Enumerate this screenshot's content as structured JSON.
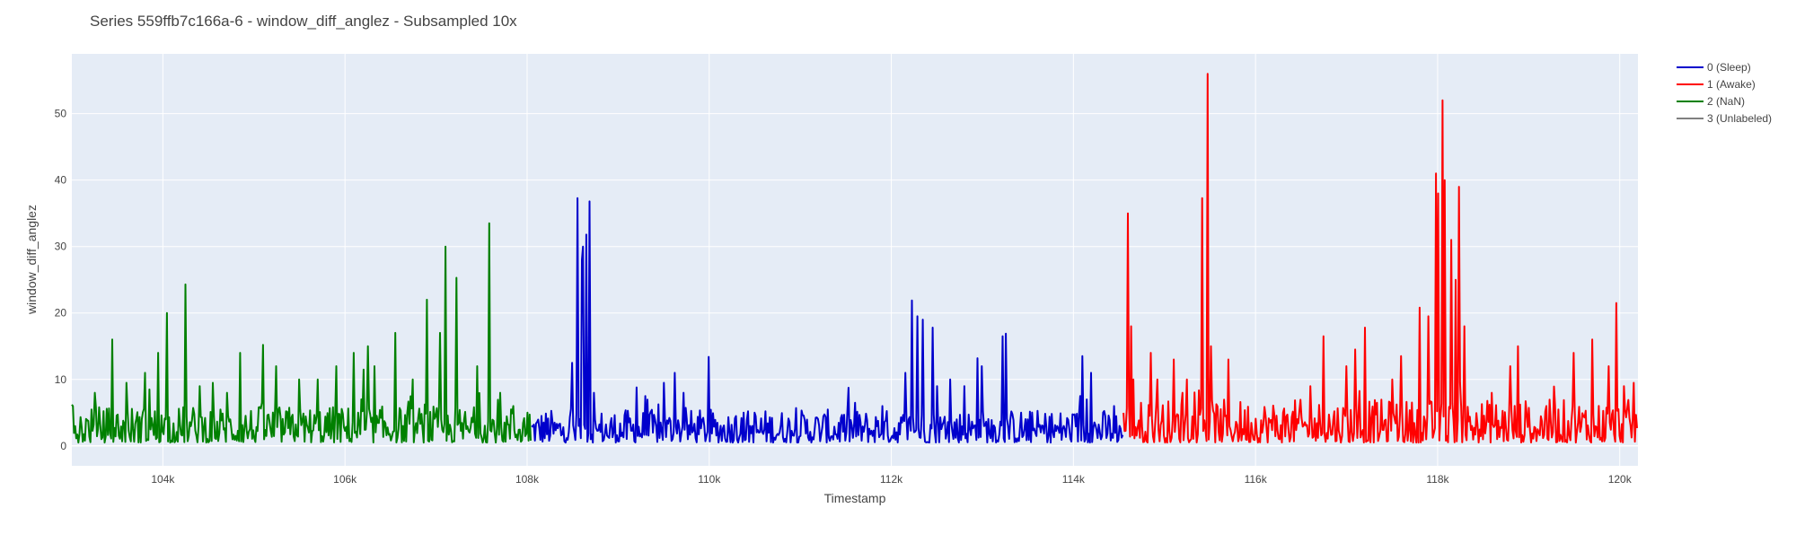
{
  "chart_data": {
    "type": "line",
    "title": "Series 559ffb7c166a-6 - window_diff_anglez - Subsampled 10x",
    "xlabel": "Timestamp",
    "ylabel": "window_diff_anglez",
    "xlim": [
      103000,
      120200
    ],
    "ylim": [
      -3,
      59
    ],
    "x_ticks": [
      104000,
      106000,
      108000,
      110000,
      112000,
      114000,
      116000,
      118000,
      120000
    ],
    "x_tick_labels": [
      "104k",
      "106k",
      "108k",
      "110k",
      "112k",
      "114k",
      "116k",
      "118k",
      "120k"
    ],
    "y_ticks": [
      0,
      10,
      20,
      30,
      40,
      50
    ],
    "y_tick_labels": [
      "0",
      "10",
      "20",
      "30",
      "40",
      "50"
    ],
    "grid": true,
    "legend_position": "top-right",
    "series": [
      {
        "name": "0 (Sleep)",
        "color": "#0000cc",
        "segments": [
          [
            108050,
            114550
          ]
        ],
        "base": [
          0.5,
          5.5
        ],
        "spikes": [
          [
            108300,
            3.5
          ],
          [
            108500,
            12.5
          ],
          [
            108560,
            37.3
          ],
          [
            108600,
            28.0
          ],
          [
            108620,
            30.0
          ],
          [
            108650,
            31.8
          ],
          [
            108690,
            36.8
          ],
          [
            108730,
            8.0
          ],
          [
            108900,
            1.2
          ],
          [
            109200,
            8.8
          ],
          [
            109300,
            7.5
          ],
          [
            109500,
            9.5
          ],
          [
            109620,
            11.0
          ],
          [
            109720,
            8.0
          ],
          [
            110000,
            13.4
          ],
          [
            110300,
            4.5
          ],
          [
            110500,
            5.0
          ],
          [
            111000,
            1.5
          ],
          [
            111600,
            2.0
          ],
          [
            111600,
            6.5
          ],
          [
            111900,
            6.0
          ],
          [
            112150,
            11.0
          ],
          [
            112230,
            21.9
          ],
          [
            112290,
            19.5
          ],
          [
            112350,
            19.0
          ],
          [
            112450,
            17.8
          ],
          [
            112500,
            9.0
          ],
          [
            112650,
            10.0
          ],
          [
            112800,
            9.0
          ],
          [
            112950,
            13.2
          ],
          [
            113000,
            12.0
          ],
          [
            113220,
            16.5
          ],
          [
            113260,
            16.9
          ],
          [
            113500,
            4.0
          ],
          [
            113700,
            3.0
          ],
          [
            113900,
            3.0
          ],
          [
            114080,
            7.5
          ],
          [
            114100,
            13.5
          ],
          [
            114150,
            7.0
          ],
          [
            114200,
            11.0
          ],
          [
            114350,
            4.5
          ],
          [
            114450,
            6.0
          ]
        ]
      },
      {
        "name": "1 (Awake)",
        "color": "#ff0000",
        "segments": [
          [
            114550,
            120200
          ]
        ],
        "base": [
          0.5,
          7.0
        ],
        "spikes": [
          [
            114600,
            35.0
          ],
          [
            114630,
            18.0
          ],
          [
            114660,
            10.0
          ],
          [
            114850,
            14.0
          ],
          [
            114920,
            10.0
          ],
          [
            115100,
            13.0
          ],
          [
            115200,
            8.0
          ],
          [
            115250,
            10.0
          ],
          [
            115420,
            37.3
          ],
          [
            115480,
            56.0
          ],
          [
            115510,
            15.0
          ],
          [
            115700,
            13.0
          ],
          [
            116300,
            5.0
          ],
          [
            116600,
            9.0
          ],
          [
            116750,
            16.5
          ],
          [
            117000,
            12.0
          ],
          [
            117100,
            14.5
          ],
          [
            117200,
            17.8
          ],
          [
            117500,
            10.0
          ],
          [
            117600,
            13.5
          ],
          [
            117800,
            20.8
          ],
          [
            117900,
            19.5
          ],
          [
            117980,
            41.0
          ],
          [
            118010,
            38.0
          ],
          [
            118050,
            52.0
          ],
          [
            118080,
            40.0
          ],
          [
            118150,
            31.0
          ],
          [
            118200,
            25.0
          ],
          [
            118230,
            39.0
          ],
          [
            118300,
            18.0
          ],
          [
            118600,
            8.0
          ],
          [
            118800,
            12.0
          ],
          [
            118880,
            15.0
          ],
          [
            119200,
            6.0
          ],
          [
            119500,
            14.0
          ],
          [
            119700,
            16.0
          ],
          [
            119880,
            12.0
          ],
          [
            119960,
            21.5
          ],
          [
            120050,
            9.0
          ],
          [
            120150,
            9.5
          ]
        ]
      },
      {
        "name": "2 (NaN)",
        "color": "#008000",
        "segments": [
          [
            103000,
            108050
          ]
        ],
        "base": [
          0.5,
          6.0
        ],
        "spikes": [
          [
            103000,
            6.2
          ],
          [
            103250,
            8.0
          ],
          [
            103450,
            16.0
          ],
          [
            103600,
            9.5
          ],
          [
            103800,
            11.0
          ],
          [
            103850,
            8.5
          ],
          [
            103950,
            14.0
          ],
          [
            104050,
            20.0
          ],
          [
            104250,
            24.3
          ],
          [
            104400,
            9.0
          ],
          [
            104550,
            9.5
          ],
          [
            104700,
            8.0
          ],
          [
            104850,
            14.0
          ],
          [
            105100,
            15.2
          ],
          [
            105250,
            12.0
          ],
          [
            105500,
            10.0
          ],
          [
            105700,
            10.0
          ],
          [
            105900,
            12.0
          ],
          [
            106100,
            14.0
          ],
          [
            106200,
            11.5
          ],
          [
            106250,
            15.0
          ],
          [
            106320,
            12.0
          ],
          [
            106550,
            17.0
          ],
          [
            106750,
            10.0
          ],
          [
            106900,
            22.0
          ],
          [
            107050,
            17.0
          ],
          [
            107100,
            30.0
          ],
          [
            107220,
            25.3
          ],
          [
            107450,
            12.0
          ],
          [
            107580,
            33.5
          ],
          [
            107700,
            8.0
          ],
          [
            107850,
            6.0
          ],
          [
            108000,
            5.0
          ]
        ]
      },
      {
        "name": "3 (Unlabeled)",
        "color": "#808080",
        "segments": [],
        "base": [
          0,
          0
        ],
        "spikes": []
      }
    ]
  }
}
